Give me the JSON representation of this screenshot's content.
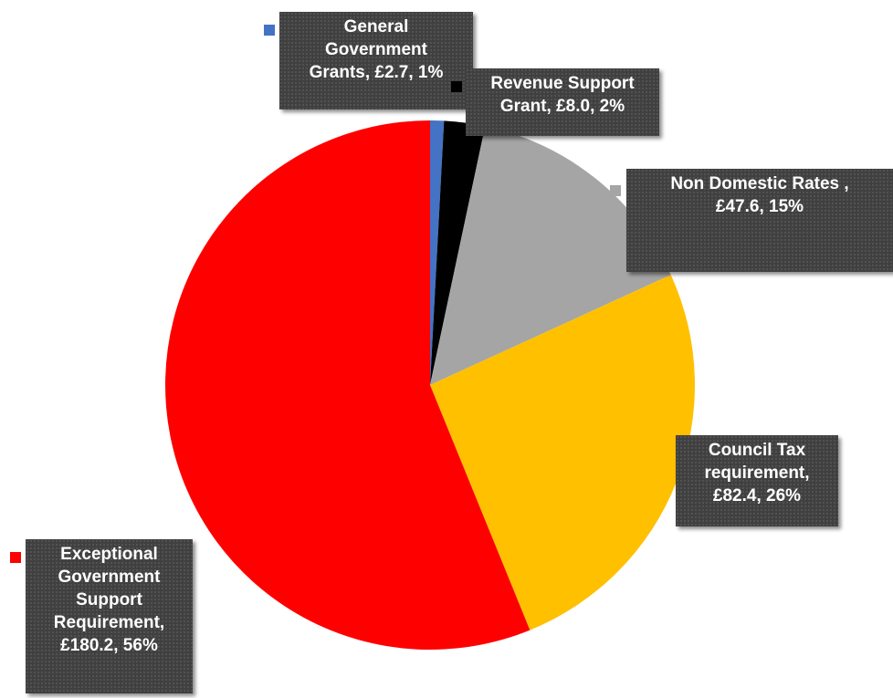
{
  "chart_data": {
    "type": "pie",
    "title": "",
    "start_angle_deg": 0,
    "direction": "clockwise",
    "slices": [
      {
        "category": "General Government Grants",
        "value": 2.7,
        "percent": "1%",
        "color": "#4472c4",
        "label_lines": [
          "General",
          "Government",
          "Grants,  £2.7,  1%"
        ]
      },
      {
        "category": "Revenue Support Grant",
        "value": 8.0,
        "percent": "2%",
        "color": "#000000",
        "label_lines": [
          "Revenue Support",
          "Grant,  £8.0,  2%"
        ]
      },
      {
        "category": "Non Domestic Rates",
        "value": 47.6,
        "percent": "15%",
        "color": "#a5a5a5",
        "label_lines": [
          "Non Domestic Rates ,",
          "£47.6,  15%"
        ]
      },
      {
        "category": "Council Tax requirement",
        "value": 82.4,
        "percent": "26%",
        "color": "#ffc000",
        "label_lines": [
          "Council Tax",
          "requirement,",
          "£82.4,  26%"
        ]
      },
      {
        "category": "Exceptional Government Support Requirement",
        "value": 180.2,
        "percent": "56%",
        "color": "#ff0000",
        "label_lines": [
          "Exceptional",
          "Government",
          "Support",
          "Requirement,",
          "£180.2,  56%"
        ]
      }
    ]
  }
}
